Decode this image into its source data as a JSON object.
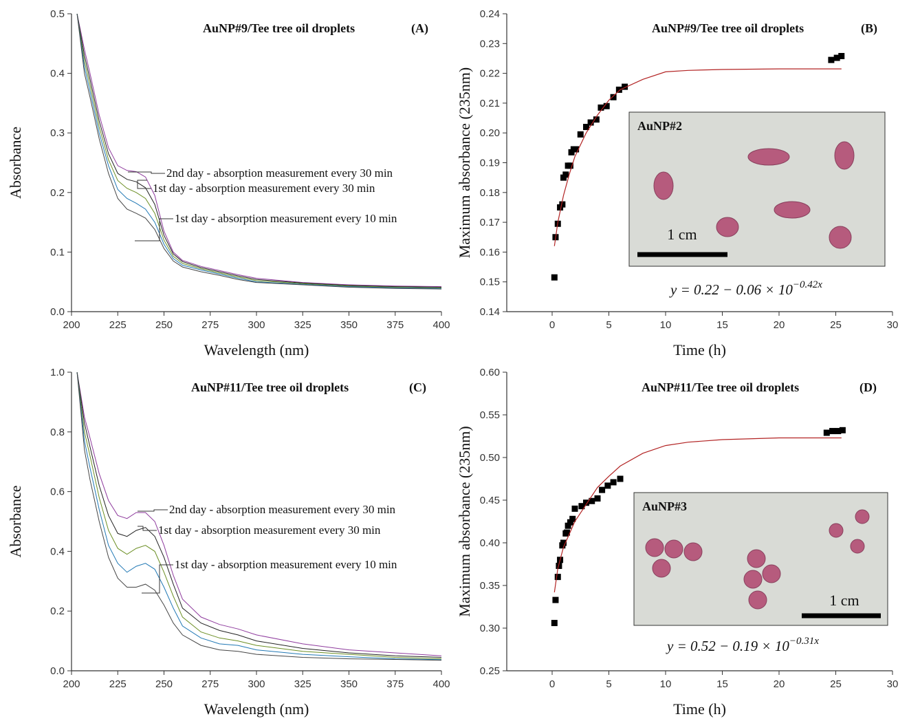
{
  "chart_data": [
    {
      "type": "line",
      "title": "AuNP#9/Tee tree oil droplets",
      "panel": "(A)",
      "x_label": "Wavelength (nm)",
      "y_label": "Absorbance",
      "xlim": [
        200,
        400
      ],
      "xticks": [
        200,
        225,
        250,
        275,
        300,
        325,
        350,
        375,
        400
      ],
      "ylim": [
        0,
        0.5
      ],
      "yticks": [
        {
          "value": 0,
          "label": "0.0"
        },
        0.1,
        0.2,
        0.3,
        0.4,
        0.5
      ],
      "annotations": [
        "2nd day - absorption measurement every 30 min",
        "1st day - absorption measurement every 30 min",
        "1st day - absorption measurement every 10 min"
      ],
      "x": [
        203,
        207,
        210,
        215,
        220,
        225,
        230,
        235,
        240,
        245,
        250,
        255,
        260,
        270,
        280,
        290,
        300,
        325,
        350,
        375,
        400
      ],
      "series": [
        {
          "color": "#8e3a9d",
          "values": [
            0.5,
            0.44,
            0.4,
            0.33,
            0.275,
            0.245,
            0.237,
            0.235,
            0.226,
            0.195,
            0.135,
            0.1,
            0.086,
            0.076,
            0.069,
            0.062,
            0.056,
            0.049,
            0.045,
            0.043,
            0.042
          ]
        },
        {
          "color": "#222222",
          "values": [
            0.5,
            0.43,
            0.39,
            0.32,
            0.265,
            0.232,
            0.222,
            0.218,
            0.208,
            0.18,
            0.128,
            0.097,
            0.084,
            0.074,
            0.067,
            0.06,
            0.054,
            0.048,
            0.044,
            0.042,
            0.041
          ]
        },
        {
          "color": "#6b8e23",
          "values": [
            0.5,
            0.42,
            0.38,
            0.31,
            0.255,
            0.22,
            0.207,
            0.2,
            0.19,
            0.165,
            0.12,
            0.093,
            0.081,
            0.072,
            0.065,
            0.058,
            0.052,
            0.047,
            0.043,
            0.041,
            0.04
          ]
        },
        {
          "color": "#1f77b4",
          "values": [
            0.5,
            0.41,
            0.37,
            0.3,
            0.245,
            0.205,
            0.19,
            0.182,
            0.172,
            0.15,
            0.113,
            0.089,
            0.078,
            0.07,
            0.063,
            0.056,
            0.05,
            0.046,
            0.042,
            0.04,
            0.039
          ]
        },
        {
          "color": "#444444",
          "values": [
            0.5,
            0.4,
            0.36,
            0.29,
            0.232,
            0.19,
            0.172,
            0.165,
            0.157,
            0.138,
            0.106,
            0.085,
            0.075,
            0.067,
            0.061,
            0.054,
            0.049,
            0.045,
            0.041,
            0.039,
            0.038
          ]
        }
      ]
    },
    {
      "type": "scatter",
      "title": "AuNP#9/Tee tree oil droplets",
      "panel": "(B)",
      "x_label": "Time (h)",
      "y_label": "Maximum absorbance (235nm)",
      "xlim": [
        -4,
        30
      ],
      "xticks": [
        0,
        5,
        10,
        15,
        20,
        25,
        30
      ],
      "ylim": [
        0.14,
        0.24
      ],
      "yticks": [
        0.14,
        0.15,
        0.16,
        0.17,
        0.18,
        0.19,
        {
          "value": 0.2,
          "label": "0.20"
        },
        0.21,
        0.22,
        0.23,
        0.24
      ],
      "inset": {
        "label": "AuNP#2",
        "scale_label": "1 cm"
      },
      "equation": "y = 0.22  − 0.06 × 10",
      "equation_exponent": "−0.42x",
      "series": [
        {
          "type": "scatter",
          "color": "#000000",
          "x": [
            0.2,
            0.3,
            0.5,
            0.7,
            0.9,
            1.0,
            1.2,
            1.4,
            1.6,
            1.7,
            1.9,
            2.1,
            2.5,
            3.0,
            3.4,
            3.9,
            4.3,
            4.8,
            5.4,
            5.9,
            6.4,
            24.6,
            25.1,
            25.5
          ],
          "values": [
            0.1515,
            0.165,
            0.1695,
            0.175,
            0.176,
            0.185,
            0.186,
            0.189,
            0.189,
            0.1935,
            0.1945,
            0.1945,
            0.1995,
            0.202,
            0.2035,
            0.2045,
            0.2085,
            0.209,
            0.212,
            0.2145,
            0.2155,
            0.2245,
            0.2252,
            0.2258
          ]
        },
        {
          "type": "line",
          "color": "#b22222",
          "x": [
            0.2,
            0.5,
            1,
            1.5,
            2,
            3,
            4,
            5,
            6,
            8,
            10,
            12,
            15,
            20,
            25.5
          ],
          "values": [
            0.162,
            0.17,
            0.179,
            0.186,
            0.192,
            0.2,
            0.206,
            0.211,
            0.2145,
            0.218,
            0.2205,
            0.221,
            0.2213,
            0.2215,
            0.2215
          ]
        }
      ]
    },
    {
      "type": "line",
      "title": "AuNP#11/Tee tree oil droplets",
      "panel": "(C)",
      "x_label": "Wavelength (nm)",
      "y_label": "Absorbance",
      "xlim": [
        200,
        400
      ],
      "xticks": [
        200,
        225,
        250,
        275,
        300,
        325,
        350,
        375,
        400
      ],
      "ylim": [
        0,
        1
      ],
      "yticks": [
        {
          "value": 0,
          "label": "0.0"
        },
        0.2,
        0.4,
        0.6,
        0.8,
        {
          "value": 1,
          "label": "1.0"
        }
      ],
      "annotations": [
        "2nd day - absorption measurement every 30 min",
        "1st day - absorption measurement every 30 min",
        "1st day - absorption measurement every 10 min"
      ],
      "x": [
        203,
        207,
        210,
        215,
        220,
        225,
        230,
        235,
        240,
        245,
        250,
        255,
        260,
        270,
        280,
        290,
        300,
        325,
        350,
        375,
        400
      ],
      "series": [
        {
          "color": "#8e3a9d",
          "values": [
            1.0,
            0.85,
            0.78,
            0.66,
            0.57,
            0.52,
            0.51,
            0.53,
            0.53,
            0.5,
            0.42,
            0.32,
            0.24,
            0.18,
            0.155,
            0.14,
            0.12,
            0.09,
            0.07,
            0.06,
            0.05
          ]
        },
        {
          "color": "#222222",
          "values": [
            1.0,
            0.83,
            0.75,
            0.62,
            0.52,
            0.46,
            0.45,
            0.47,
            0.48,
            0.45,
            0.38,
            0.29,
            0.21,
            0.16,
            0.135,
            0.12,
            0.1,
            0.075,
            0.06,
            0.05,
            0.045
          ]
        },
        {
          "color": "#6b8e23",
          "values": [
            1.0,
            0.8,
            0.72,
            0.58,
            0.47,
            0.41,
            0.39,
            0.41,
            0.42,
            0.4,
            0.33,
            0.25,
            0.18,
            0.13,
            0.11,
            0.1,
            0.085,
            0.065,
            0.055,
            0.045,
            0.04
          ]
        },
        {
          "color": "#1f77b4",
          "values": [
            1.0,
            0.77,
            0.68,
            0.54,
            0.42,
            0.36,
            0.33,
            0.35,
            0.36,
            0.34,
            0.28,
            0.21,
            0.15,
            0.11,
            0.09,
            0.085,
            0.07,
            0.055,
            0.047,
            0.04,
            0.037
          ]
        },
        {
          "color": "#444444",
          "values": [
            1.0,
            0.74,
            0.64,
            0.5,
            0.38,
            0.31,
            0.28,
            0.28,
            0.29,
            0.27,
            0.22,
            0.16,
            0.12,
            0.085,
            0.07,
            0.065,
            0.055,
            0.045,
            0.04,
            0.038,
            0.035
          ]
        }
      ]
    },
    {
      "type": "scatter",
      "title": "AuNP#11/Tee tree oil droplets",
      "panel": "(D)",
      "x_label": "Time (h)",
      "y_label": "Maximum absorbance (235nm)",
      "xlim": [
        -4,
        30
      ],
      "xticks": [
        0,
        5,
        10,
        15,
        20,
        25,
        30
      ],
      "ylim": [
        0.25,
        0.6
      ],
      "yticks": [
        0.25,
        {
          "value": 0.3,
          "label": "0.30"
        },
        0.35,
        {
          "value": 0.4,
          "label": "0.40"
        },
        0.45,
        {
          "value": 0.5,
          "label": "0.50"
        },
        0.55,
        {
          "value": 0.6,
          "label": "0.60"
        }
      ],
      "inset": {
        "label": "AuNP#3",
        "scale_label": "1 cm"
      },
      "equation": "y = 0.52  − 0.19 × 10",
      "equation_exponent": "−0.31x",
      "series": [
        {
          "type": "scatter",
          "color": "#000000",
          "x": [
            0.2,
            0.3,
            0.5,
            0.6,
            0.7,
            0.9,
            1.0,
            1.2,
            1.3,
            1.4,
            1.6,
            1.8,
            2.0,
            2.6,
            3.0,
            3.5,
            4.0,
            4.4,
            4.9,
            5.4,
            6.0,
            24.2,
            24.7,
            25.2,
            25.6
          ],
          "values": [
            0.306,
            0.333,
            0.36,
            0.373,
            0.38,
            0.397,
            0.4,
            0.411,
            0.412,
            0.42,
            0.424,
            0.428,
            0.44,
            0.443,
            0.447,
            0.449,
            0.452,
            0.462,
            0.467,
            0.471,
            0.475,
            0.529,
            0.531,
            0.531,
            0.532
          ]
        },
        {
          "type": "line",
          "color": "#b22222",
          "x": [
            0.2,
            0.5,
            1,
            1.5,
            2,
            3,
            4,
            5,
            6,
            8,
            10,
            12,
            15,
            20,
            25.5
          ],
          "values": [
            0.342,
            0.37,
            0.395,
            0.41,
            0.425,
            0.445,
            0.465,
            0.478,
            0.49,
            0.505,
            0.514,
            0.518,
            0.521,
            0.523,
            0.523
          ]
        }
      ]
    }
  ]
}
